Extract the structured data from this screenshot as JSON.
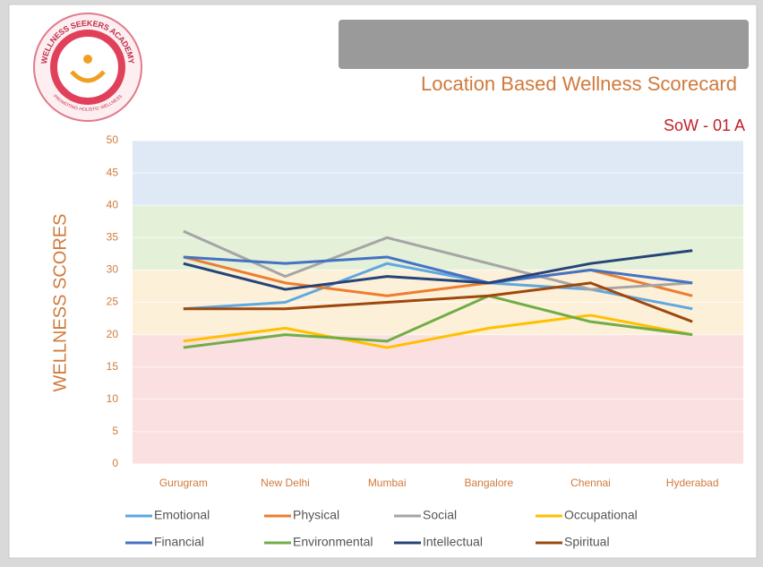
{
  "chart_data": {
    "type": "line",
    "title": "Location Based Wellness Scorecard",
    "subtitle": "SoW - 01 A",
    "y_label": "WELLNESS SCORES",
    "logo": {
      "top_text": "WELLNESS SEEKERS ACADEMY",
      "bottom_text": "PROMOTING HOLISTIC WELLNESS"
    },
    "categories": [
      "Gurugram",
      "New Delhi",
      "Mumbai",
      "Bangalore",
      "Chennai",
      "Hyderabad"
    ],
    "series": [
      {
        "name": "Emotional",
        "color": "#5fa8e0",
        "values": [
          24,
          25,
          31,
          28,
          27,
          24
        ]
      },
      {
        "name": "Physical",
        "color": "#ed7d31",
        "values": [
          32,
          28,
          26,
          28,
          30,
          26
        ]
      },
      {
        "name": "Social",
        "color": "#a5a5a5",
        "values": [
          36,
          29,
          35,
          31,
          27,
          28
        ]
      },
      {
        "name": "Occupational",
        "color": "#ffc000",
        "values": [
          19,
          21,
          18,
          21,
          23,
          20
        ]
      },
      {
        "name": "Financial",
        "color": "#4472c4",
        "values": [
          32,
          31,
          32,
          28,
          30,
          28
        ]
      },
      {
        "name": "Environmental",
        "color": "#70ad47",
        "values": [
          18,
          20,
          19,
          26,
          22,
          20
        ]
      },
      {
        "name": "Intellectual",
        "color": "#264478",
        "values": [
          31,
          27,
          29,
          28,
          31,
          33
        ]
      },
      {
        "name": "Spiritual",
        "color": "#9e480e",
        "values": [
          24,
          24,
          25,
          26,
          28,
          22
        ]
      }
    ],
    "bands": [
      {
        "from": 0,
        "to": 20,
        "color": "#fbe0e2"
      },
      {
        "from": 20,
        "to": 30,
        "color": "#fdf0d8"
      },
      {
        "from": 30,
        "to": 40,
        "color": "#e4f0d8"
      },
      {
        "from": 40,
        "to": 50,
        "color": "#dfe9f5"
      }
    ],
    "ylim": [
      0,
      50
    ],
    "yticks": [
      0,
      5,
      10,
      15,
      20,
      25,
      30,
      35,
      40,
      45,
      50
    ],
    "grid": true
  }
}
